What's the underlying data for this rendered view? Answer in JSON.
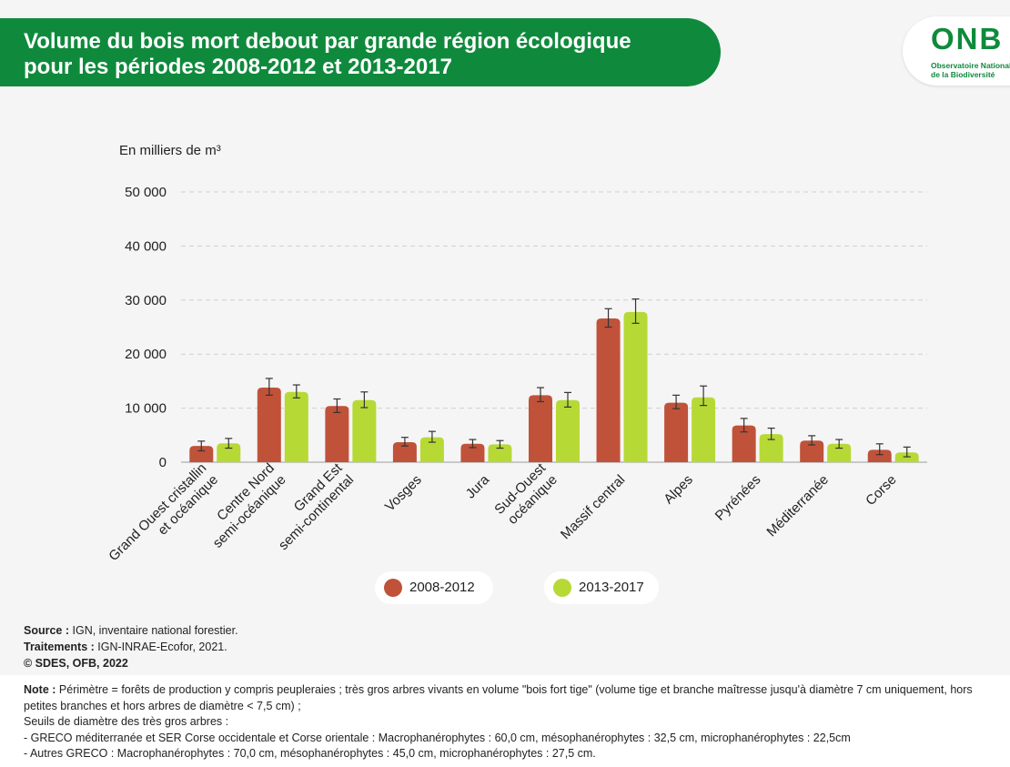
{
  "header": {
    "title_line_1": "Volume du bois mort debout par grande région écologique",
    "title_line_2": "pour les périodes 2008-2012 et 2013-2017",
    "logo_mark": "ONB",
    "logo_sub_1": "Observatoire National",
    "logo_sub_2": "de la Biodiversité"
  },
  "colors": {
    "banner": "#0f8a3c",
    "series_2008": "#c0523a",
    "series_2013": "#b7d935"
  },
  "chart_data": {
    "type": "bar",
    "title": "Volume du bois mort debout par grande région écologique pour les périodes 2008-2012 et 2013-2017",
    "ylabel": "En milliers de m³",
    "ylim": [
      0,
      50000
    ],
    "yticks": [
      0,
      10000,
      20000,
      30000,
      40000,
      50000
    ],
    "ytick_labels": [
      "0",
      "10 000",
      "20 000",
      "30 000",
      "40 000",
      "50 000"
    ],
    "grid": true,
    "legend_position": "bottom",
    "categories": [
      [
        "Grand Ouest cristallin",
        "et océanique"
      ],
      [
        "Centre Nord",
        "semi-océanique"
      ],
      [
        "Grand Est",
        "semi-continental"
      ],
      [
        "Vosges"
      ],
      [
        "Jura"
      ],
      [
        "Sud-Ouest",
        "océanique"
      ],
      [
        "Massif central"
      ],
      [
        "Alpes"
      ],
      [
        "Pyrénées"
      ],
      [
        "Méditerranée"
      ],
      [
        "Corse"
      ]
    ],
    "series": [
      {
        "name": "2008-2012",
        "values": [
          3000,
          13800,
          10400,
          3700,
          3400,
          12400,
          26600,
          11000,
          6800,
          4000,
          2300
        ],
        "error_low": [
          2100,
          12400,
          9200,
          3000,
          2700,
          11200,
          25000,
          9900,
          5600,
          3200,
          1400
        ],
        "error_high": [
          3900,
          15500,
          11700,
          4600,
          4200,
          13800,
          28400,
          12400,
          8100,
          4900,
          3400
        ]
      },
      {
        "name": "2013-2017",
        "values": [
          3500,
          13000,
          11500,
          4600,
          3300,
          11500,
          27800,
          12000,
          5200,
          3400,
          1800
        ],
        "error_low": [
          2600,
          11900,
          10100,
          3700,
          2600,
          10200,
          25700,
          10500,
          4200,
          2600,
          1000
        ],
        "error_high": [
          4400,
          14300,
          13000,
          5700,
          4000,
          12900,
          30200,
          14100,
          6300,
          4200,
          2800
        ]
      }
    ]
  },
  "source": {
    "source_label": "Source :",
    "source_text": "IGN, inventaire national forestier.",
    "treatment_label": "Traitements :",
    "treatment_text": "IGN-INRAE-Ecofor, 2021.",
    "copyright": "© SDES, OFB, 2022"
  },
  "note": {
    "label": "Note :",
    "line_1": "Périmètre = forêts de production y compris peupleraies ; très gros arbres vivants en volume \"bois fort tige\" (volume tige et branche maîtresse jusqu'à diamètre 7 cm uniquement, hors petites branches et hors arbres de diamètre < 7,5 cm) ;",
    "line_2": "Seuils de diamètre des très gros arbres :",
    "line_3": "- GRECO méditerranée et SER Corse occidentale et Corse orientale : Macrophanérophytes : 60,0 cm, mésophanérophytes : 32,5 cm, microphanérophytes : 22,5cm",
    "line_4": "- Autres GRECO : Macrophanérophytes : 70,0 cm, mésophanérophytes : 45,0 cm, microphanérophytes : 27,5 cm."
  }
}
